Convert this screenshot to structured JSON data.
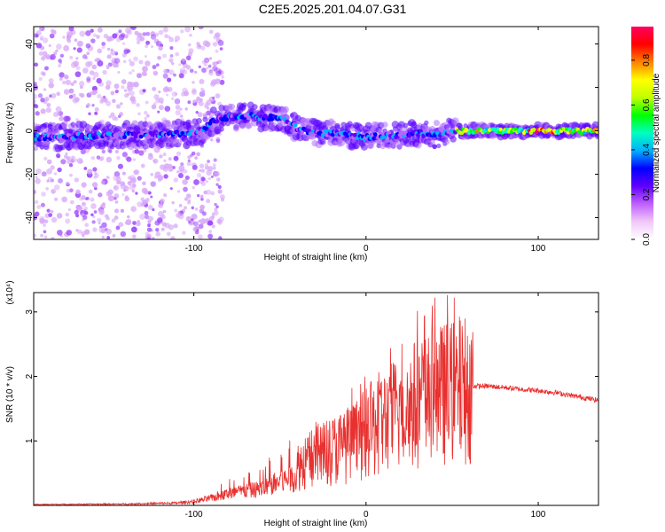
{
  "title": "C2E5.2025.201.04.07.G31",
  "chart_data": [
    {
      "type": "heatmap",
      "xlabel": "Height of straight line (km)",
      "ylabel": "Frequency (Hz)",
      "xlim": [
        -193,
        135
      ],
      "ylim": [
        -50,
        48
      ],
      "xticks": [
        -100,
        0,
        100
      ],
      "yticks": [
        -40,
        -20,
        0,
        20,
        40
      ],
      "grid": false,
      "colorbar": {
        "label": "Normalized spectral amplitude",
        "range": [
          0,
          0.95
        ],
        "ticks": [
          0.0,
          0.2,
          0.4,
          0.6,
          0.8
        ],
        "colors": [
          "#ffffff",
          "#f0c8f8",
          "#c060ff",
          "#6000ff",
          "#0000ff",
          "#00b0ff",
          "#00ffc0",
          "#00ff00",
          "#c0ff00",
          "#ffff00",
          "#ff8000",
          "#ff0000",
          "#ff0060"
        ]
      },
      "ridge": {
        "x": [
          -193,
          -150,
          -120,
          -100,
          -95,
          -90,
          -80,
          -70,
          -60,
          -50,
          -45,
          -40,
          -30,
          -20,
          -10,
          0,
          10,
          20,
          30,
          40,
          45,
          50,
          60,
          80,
          100,
          120,
          135
        ],
        "y": [
          -3,
          -2,
          -2,
          -1,
          0,
          4,
          6,
          7,
          6,
          6,
          4,
          1,
          -1,
          -1,
          -2,
          -3,
          -2,
          -2,
          -1,
          -2,
          -1,
          0,
          0,
          0,
          0,
          0,
          0
        ]
      }
    },
    {
      "type": "line",
      "xlabel": "Height of straight line (km)",
      "ylabel": "SNR (10 * v/v)",
      "y_multiplier": "(x10⁴)",
      "xlim": [
        -193,
        135
      ],
      "ylim": [
        0,
        3.3
      ],
      "xticks": [
        -100,
        0,
        100
      ],
      "yticks": [
        1,
        2,
        3
      ],
      "grid": false,
      "color": "#e8302e",
      "envelope": {
        "x": [
          -193,
          -140,
          -110,
          -100,
          -90,
          -80,
          -70,
          -60,
          -50,
          -40,
          -30,
          -20,
          -10,
          0,
          10,
          20,
          30,
          40,
          50,
          55,
          60,
          62,
          70,
          80,
          90,
          100,
          110,
          120,
          135
        ],
        "y": [
          0.02,
          0.03,
          0.05,
          0.08,
          0.15,
          0.25,
          0.3,
          0.35,
          0.5,
          0.6,
          0.75,
          0.85,
          0.95,
          1.1,
          1.3,
          1.45,
          1.6,
          1.7,
          1.75,
          1.8,
          1.8,
          1.85,
          1.85,
          1.83,
          1.8,
          1.78,
          1.75,
          1.7,
          1.63
        ]
      }
    }
  ]
}
